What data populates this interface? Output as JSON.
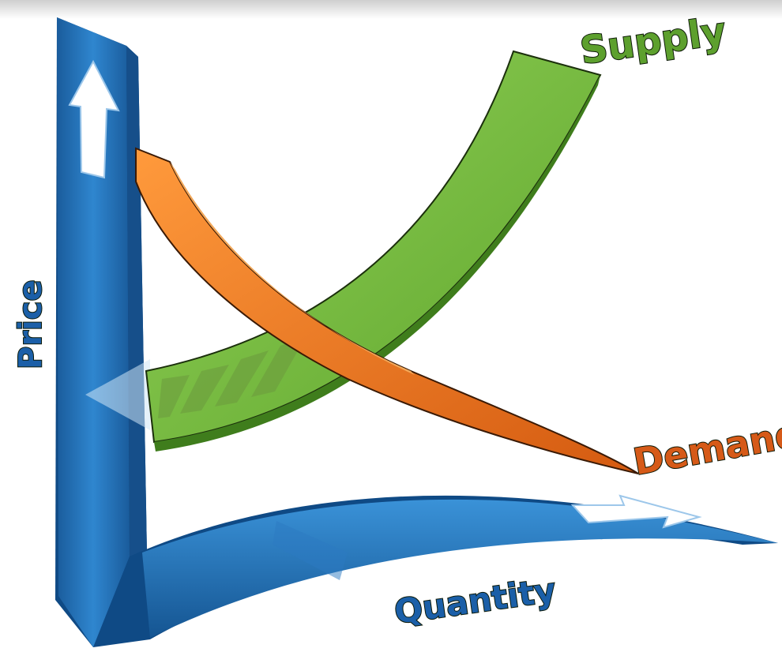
{
  "labels": {
    "supply": "Supply",
    "demand": "Demand",
    "price": "Price",
    "quantity": "Quantity"
  },
  "colors": {
    "axis_blue": "#1f6fb3",
    "axis_dark": "#0f4a85",
    "supply_green": "#7cc243",
    "supply_dark": "#3f7d1c",
    "demand_orange": "#e8701e",
    "demand_dark": "#a8430c",
    "label_supply": "#5da02e",
    "label_demand": "#d65a18",
    "label_axis": "#1b5fa8"
  },
  "arrows": {
    "price_axis": "up-arrow-icon",
    "quantity_axis": "right-arrow-icon"
  }
}
